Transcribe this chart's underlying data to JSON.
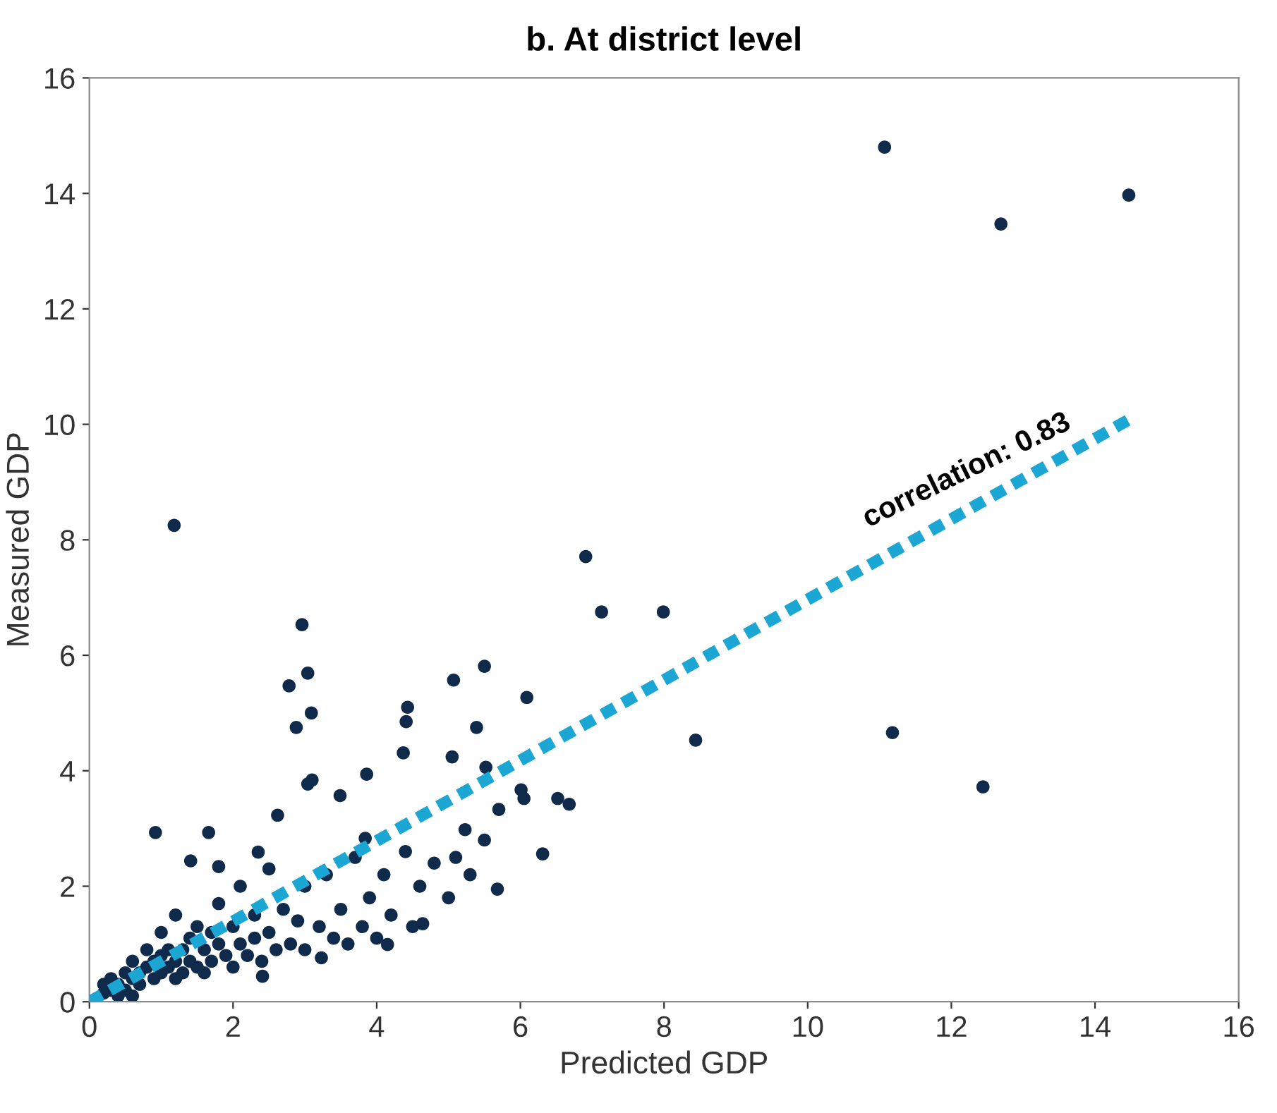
{
  "chart_data": {
    "type": "scatter",
    "title": "b. At district level",
    "xlabel": "Predicted GDP",
    "ylabel": "Measured GDP",
    "xlim": [
      0,
      16
    ],
    "xticks": [
      0,
      2,
      4,
      6,
      8,
      10,
      12,
      14,
      16
    ],
    "ylim": [
      0,
      16
    ],
    "yticks": [
      0,
      2,
      4,
      6,
      8,
      10,
      12,
      14,
      16
    ],
    "grid": false,
    "legend": false,
    "series": [
      {
        "color": "#0f2a4a",
        "marker": "circle",
        "x": [
          1.18,
          11.07,
          12.69,
          14.47,
          6.91,
          7.13,
          7.99,
          8.44,
          11.18,
          12.44,
          2.96,
          3.04,
          3.09,
          2.78,
          2.88,
          5.5,
          5.07,
          6.09,
          4.43,
          4.41,
          5.39,
          5.05,
          5.52,
          6.68,
          6.52,
          6.05,
          6.01,
          5.7,
          4.37,
          3.86,
          3.49,
          3.04,
          3.1,
          2.62,
          0.92,
          1.66,
          3.84,
          5.23,
          6.31,
          5.68,
          3.23,
          2.41,
          1.41,
          1.8,
          2.35,
          4.64,
          4.15,
          0.2,
          0.3,
          0.3,
          0.4,
          0.5,
          0.5,
          0.6,
          0.6,
          0.7,
          0.7,
          0.8,
          0.8,
          0.9,
          0.9,
          1.0,
          1.0,
          1.0,
          1.1,
          1.1,
          1.2,
          1.2,
          1.2,
          1.3,
          1.3,
          1.4,
          1.4,
          1.5,
          1.5,
          1.6,
          1.6,
          1.7,
          1.7,
          1.8,
          1.8,
          1.9,
          2.0,
          2.0,
          2.1,
          2.1,
          2.2,
          2.3,
          2.3,
          2.4,
          2.5,
          2.5,
          2.6,
          2.7,
          2.8,
          2.9,
          3.0,
          3.0,
          3.2,
          3.3,
          3.4,
          3.5,
          3.6,
          3.7,
          3.8,
          3.9,
          4.0,
          4.1,
          4.2,
          4.4,
          4.5,
          4.6,
          4.8,
          5.0,
          5.1,
          5.3,
          5.5,
          0.4,
          0.2,
          0.6
        ],
        "values": [
          8.25,
          14.8,
          13.47,
          13.97,
          7.71,
          6.75,
          6.75,
          4.53,
          4.66,
          3.72,
          6.53,
          5.69,
          5.0,
          5.47,
          4.75,
          5.81,
          5.57,
          5.27,
          5.1,
          4.85,
          4.75,
          4.24,
          4.06,
          3.42,
          3.52,
          3.52,
          3.67,
          3.33,
          4.31,
          3.94,
          3.57,
          3.77,
          3.84,
          3.23,
          2.93,
          2.93,
          2.83,
          2.98,
          2.56,
          1.95,
          0.76,
          0.44,
          2.44,
          2.34,
          2.59,
          1.35,
          0.99,
          0.15,
          0.2,
          0.4,
          0.3,
          0.5,
          0.2,
          0.4,
          0.7,
          0.3,
          0.5,
          0.6,
          0.9,
          0.4,
          0.7,
          0.5,
          0.8,
          1.2,
          0.6,
          0.9,
          0.4,
          0.7,
          1.5,
          0.9,
          0.5,
          1.1,
          0.7,
          0.6,
          1.3,
          0.9,
          0.5,
          1.2,
          0.7,
          1.0,
          1.7,
          0.8,
          1.3,
          0.6,
          1.0,
          2.0,
          0.8,
          1.5,
          1.1,
          0.7,
          1.2,
          2.3,
          0.9,
          1.6,
          1.0,
          1.4,
          2.0,
          0.9,
          1.3,
          2.2,
          1.1,
          1.6,
          1.0,
          2.5,
          1.3,
          1.8,
          1.1,
          2.2,
          1.5,
          2.6,
          1.3,
          2.0,
          2.4,
          1.8,
          2.5,
          2.2,
          2.8,
          0.1,
          0.3,
          0.1
        ]
      },
      {
        "type": "line",
        "color": "#1ba6d4",
        "line_style": "dashed",
        "x": [
          0,
          14.5
        ],
        "values": [
          0,
          10.1
        ]
      }
    ],
    "annotations": [
      {
        "text": "correlation: 0.83",
        "x": 12.3,
        "y": 8.57
      }
    ]
  }
}
